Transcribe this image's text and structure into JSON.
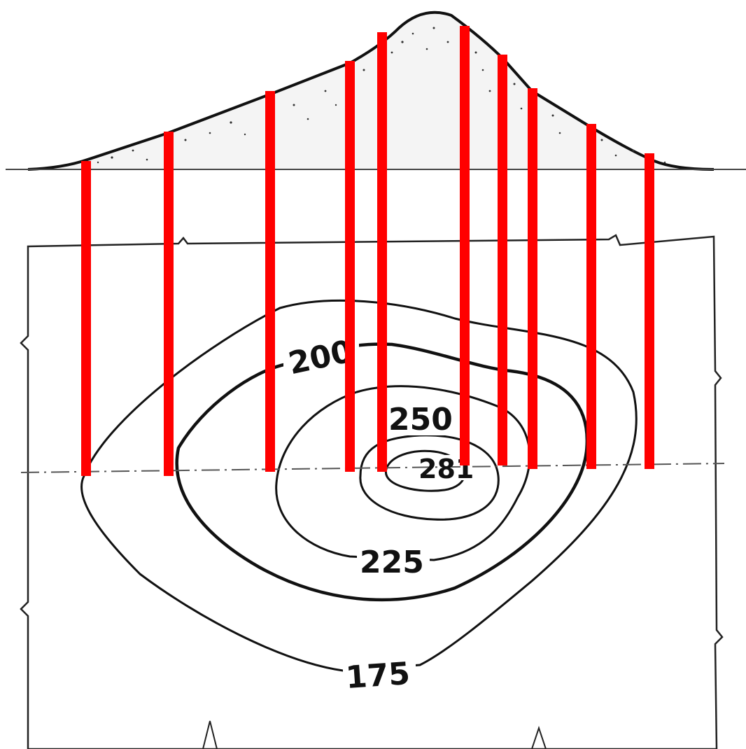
{
  "colors": {
    "ink": "#111111",
    "projection_lines": "#ff0000",
    "background": "#ffffff"
  },
  "contours": [
    {
      "elevation": 175,
      "label": "175"
    },
    {
      "elevation": 200,
      "label": "200"
    },
    {
      "elevation": 225,
      "label": "225"
    },
    {
      "elevation": 250,
      "label": "250"
    },
    {
      "elevation": 281,
      "label": "281"
    }
  ],
  "projection_line_count": 10
}
